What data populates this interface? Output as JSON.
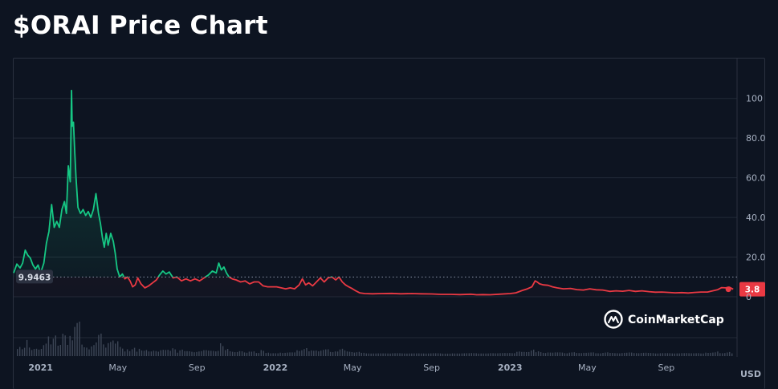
{
  "page": {
    "title": "$ORAI Price Chart"
  },
  "brand": {
    "name": "CoinMarketCap"
  },
  "colors": {
    "background": "#0d1421",
    "grid": "#222a38",
    "up": "#16c784",
    "down": "#ea3943",
    "volume": "#3d4656",
    "text": "#a7b1c2"
  },
  "chart_data": {
    "type": "line",
    "title": "$ORAI Price Chart",
    "currency": "USD",
    "ylim": [
      0,
      110
    ],
    "y_ticks": [
      0,
      20.0,
      40.0,
      60.0,
      80.0,
      100
    ],
    "y_tick_labels": [
      "0",
      "20.0",
      "40.0",
      "60.0",
      "80.0",
      "100"
    ],
    "x_range": [
      "2020-11-20",
      "2023-12-20"
    ],
    "x_ticks": [
      {
        "date": "2021-01-01",
        "label": "2021",
        "bold": true
      },
      {
        "date": "2021-05-01",
        "label": "May",
        "bold": false
      },
      {
        "date": "2021-09-01",
        "label": "Sep",
        "bold": false
      },
      {
        "date": "2022-01-01",
        "label": "2022",
        "bold": true
      },
      {
        "date": "2022-05-01",
        "label": "May",
        "bold": false
      },
      {
        "date": "2022-09-01",
        "label": "Sep",
        "bold": false
      },
      {
        "date": "2023-01-01",
        "label": "2023",
        "bold": true
      },
      {
        "date": "2023-05-01",
        "label": "May",
        "bold": false
      },
      {
        "date": "2023-09-01",
        "label": "Sep",
        "bold": false
      }
    ],
    "baseline_value": 9.9463,
    "baseline_label": "9.9463",
    "current_value": 3.8,
    "current_label": "3.8",
    "grid": true,
    "series": [
      {
        "points": [
          [
            "2020-11-20",
            12.0
          ],
          [
            "2020-11-25",
            16.5
          ],
          [
            "2020-11-30",
            14.5
          ],
          [
            "2020-12-04",
            17.0
          ],
          [
            "2020-12-08",
            23.5
          ],
          [
            "2020-12-12",
            21.0
          ],
          [
            "2020-12-16",
            19.5
          ],
          [
            "2020-12-20",
            16.0
          ],
          [
            "2020-12-24",
            14.0
          ],
          [
            "2020-12-28",
            16.0
          ],
          [
            "2021-01-01",
            12.0
          ],
          [
            "2021-01-06",
            17.0
          ],
          [
            "2021-01-10",
            27.0
          ],
          [
            "2021-01-14",
            33.0
          ],
          [
            "2021-01-18",
            46.5
          ],
          [
            "2021-01-22",
            35.0
          ],
          [
            "2021-01-26",
            38.0
          ],
          [
            "2021-01-30",
            35.0
          ],
          [
            "2021-02-03",
            44.0
          ],
          [
            "2021-02-07",
            48.0
          ],
          [
            "2021-02-10",
            42.0
          ],
          [
            "2021-02-13",
            66.0
          ],
          [
            "2021-02-16",
            58.0
          ],
          [
            "2021-02-18",
            104.0
          ],
          [
            "2021-02-19",
            86.0
          ],
          [
            "2021-02-21",
            88.0
          ],
          [
            "2021-02-23",
            73.0
          ],
          [
            "2021-02-25",
            60.0
          ],
          [
            "2021-02-28",
            45.0
          ],
          [
            "2021-03-04",
            42.0
          ],
          [
            "2021-03-08",
            44.0
          ],
          [
            "2021-03-12",
            41.0
          ],
          [
            "2021-03-16",
            43.0
          ],
          [
            "2021-03-20",
            40.0
          ],
          [
            "2021-03-24",
            44.0
          ],
          [
            "2021-03-28",
            52.0
          ],
          [
            "2021-04-01",
            42.0
          ],
          [
            "2021-04-04",
            37.0
          ],
          [
            "2021-04-07",
            30.0
          ],
          [
            "2021-04-10",
            25.0
          ],
          [
            "2021-04-13",
            32.0
          ],
          [
            "2021-04-16",
            26.0
          ],
          [
            "2021-04-20",
            32.0
          ],
          [
            "2021-04-24",
            28.0
          ],
          [
            "2021-04-27",
            22.0
          ],
          [
            "2021-04-30",
            14.0
          ],
          [
            "2021-05-04",
            10.0
          ],
          [
            "2021-05-08",
            11.5
          ],
          [
            "2021-05-12",
            9.0
          ],
          [
            "2021-05-16",
            10.0
          ],
          [
            "2021-05-20",
            8.0
          ],
          [
            "2021-05-24",
            5.0
          ],
          [
            "2021-05-28",
            6.0
          ],
          [
            "2021-06-01",
            9.5
          ],
          [
            "2021-06-06",
            6.5
          ],
          [
            "2021-06-12",
            4.5
          ],
          [
            "2021-06-18",
            5.5
          ],
          [
            "2021-06-24",
            7.0
          ],
          [
            "2021-06-30",
            8.5
          ],
          [
            "2021-07-05",
            11.0
          ],
          [
            "2021-07-10",
            13.0
          ],
          [
            "2021-07-15",
            11.5
          ],
          [
            "2021-07-20",
            12.5
          ],
          [
            "2021-07-26",
            9.5
          ],
          [
            "2021-08-01",
            10.0
          ],
          [
            "2021-08-08",
            8.0
          ],
          [
            "2021-08-15",
            9.0
          ],
          [
            "2021-08-22",
            8.0
          ],
          [
            "2021-08-29",
            9.0
          ],
          [
            "2021-09-05",
            8.0
          ],
          [
            "2021-09-12",
            9.5
          ],
          [
            "2021-09-19",
            11.0
          ],
          [
            "2021-09-25",
            13.0
          ],
          [
            "2021-10-01",
            12.0
          ],
          [
            "2021-10-05",
            17.0
          ],
          [
            "2021-10-09",
            13.5
          ],
          [
            "2021-10-13",
            15.0
          ],
          [
            "2021-10-17",
            12.0
          ],
          [
            "2021-10-21",
            10.0
          ],
          [
            "2021-10-26",
            9.0
          ],
          [
            "2021-11-01",
            8.5
          ],
          [
            "2021-11-08",
            7.5
          ],
          [
            "2021-11-15",
            8.0
          ],
          [
            "2021-11-22",
            6.5
          ],
          [
            "2021-11-29",
            7.5
          ],
          [
            "2021-12-06",
            7.5
          ],
          [
            "2021-12-13",
            5.5
          ],
          [
            "2021-12-20",
            5.0
          ],
          [
            "2021-12-27",
            5.0
          ],
          [
            "2022-01-03",
            5.0
          ],
          [
            "2022-01-10",
            4.5
          ],
          [
            "2022-01-17",
            4.0
          ],
          [
            "2022-01-24",
            4.5
          ],
          [
            "2022-01-31",
            4.0
          ],
          [
            "2022-02-07",
            6.0
          ],
          [
            "2022-02-12",
            9.0
          ],
          [
            "2022-02-17",
            6.0
          ],
          [
            "2022-02-22",
            7.0
          ],
          [
            "2022-02-28",
            5.5
          ],
          [
            "2022-03-06",
            7.5
          ],
          [
            "2022-03-12",
            9.5
          ],
          [
            "2022-03-18",
            7.5
          ],
          [
            "2022-03-24",
            9.5
          ],
          [
            "2022-03-30",
            10.0
          ],
          [
            "2022-04-05",
            8.5
          ],
          [
            "2022-04-10",
            10.0
          ],
          [
            "2022-04-15",
            7.5
          ],
          [
            "2022-04-20",
            6.0
          ],
          [
            "2022-04-25",
            5.0
          ],
          [
            "2022-05-01",
            4.0
          ],
          [
            "2022-05-06",
            3.0
          ],
          [
            "2022-05-12",
            2.0
          ],
          [
            "2022-05-20",
            1.6
          ],
          [
            "2022-06-01",
            1.5
          ],
          [
            "2022-06-15",
            1.6
          ],
          [
            "2022-07-01",
            1.7
          ],
          [
            "2022-07-15",
            1.5
          ],
          [
            "2022-08-01",
            1.6
          ],
          [
            "2022-08-15",
            1.5
          ],
          [
            "2022-09-01",
            1.4
          ],
          [
            "2022-09-15",
            1.2
          ],
          [
            "2022-10-01",
            1.2
          ],
          [
            "2022-10-15",
            1.1
          ],
          [
            "2022-11-01",
            1.3
          ],
          [
            "2022-11-10",
            1.0
          ],
          [
            "2022-11-20",
            1.1
          ],
          [
            "2022-12-01",
            1.0
          ],
          [
            "2022-12-15",
            1.3
          ],
          [
            "2023-01-01",
            1.6
          ],
          [
            "2023-01-10",
            2.0
          ],
          [
            "2023-01-20",
            3.2
          ],
          [
            "2023-01-28",
            4.0
          ],
          [
            "2023-02-04",
            5.0
          ],
          [
            "2023-02-09",
            8.0
          ],
          [
            "2023-02-12",
            7.5
          ],
          [
            "2023-02-16",
            6.5
          ],
          [
            "2023-02-22",
            6.0
          ],
          [
            "2023-03-01",
            5.8
          ],
          [
            "2023-03-08",
            5.0
          ],
          [
            "2023-03-15",
            4.5
          ],
          [
            "2023-03-25",
            4.0
          ],
          [
            "2023-04-05",
            4.2
          ],
          [
            "2023-04-15",
            3.6
          ],
          [
            "2023-04-25",
            3.4
          ],
          [
            "2023-05-05",
            4.0
          ],
          [
            "2023-05-15",
            3.5
          ],
          [
            "2023-05-25",
            3.4
          ],
          [
            "2023-06-05",
            2.7
          ],
          [
            "2023-06-15",
            3.0
          ],
          [
            "2023-06-25",
            2.8
          ],
          [
            "2023-07-05",
            3.2
          ],
          [
            "2023-07-15",
            2.7
          ],
          [
            "2023-07-25",
            3.0
          ],
          [
            "2023-08-05",
            2.6
          ],
          [
            "2023-08-15",
            2.3
          ],
          [
            "2023-08-25",
            2.4
          ],
          [
            "2023-09-05",
            2.2
          ],
          [
            "2023-09-15",
            2.0
          ],
          [
            "2023-09-25",
            2.1
          ],
          [
            "2023-10-05",
            1.9
          ],
          [
            "2023-10-15",
            2.2
          ],
          [
            "2023-10-25",
            2.4
          ],
          [
            "2023-11-04",
            2.4
          ],
          [
            "2023-11-12",
            3.0
          ],
          [
            "2023-11-20",
            3.6
          ],
          [
            "2023-11-26",
            4.6
          ],
          [
            "2023-12-02",
            4.5
          ],
          [
            "2023-12-08",
            4.8
          ],
          [
            "2023-12-14",
            3.8
          ]
        ]
      }
    ]
  }
}
